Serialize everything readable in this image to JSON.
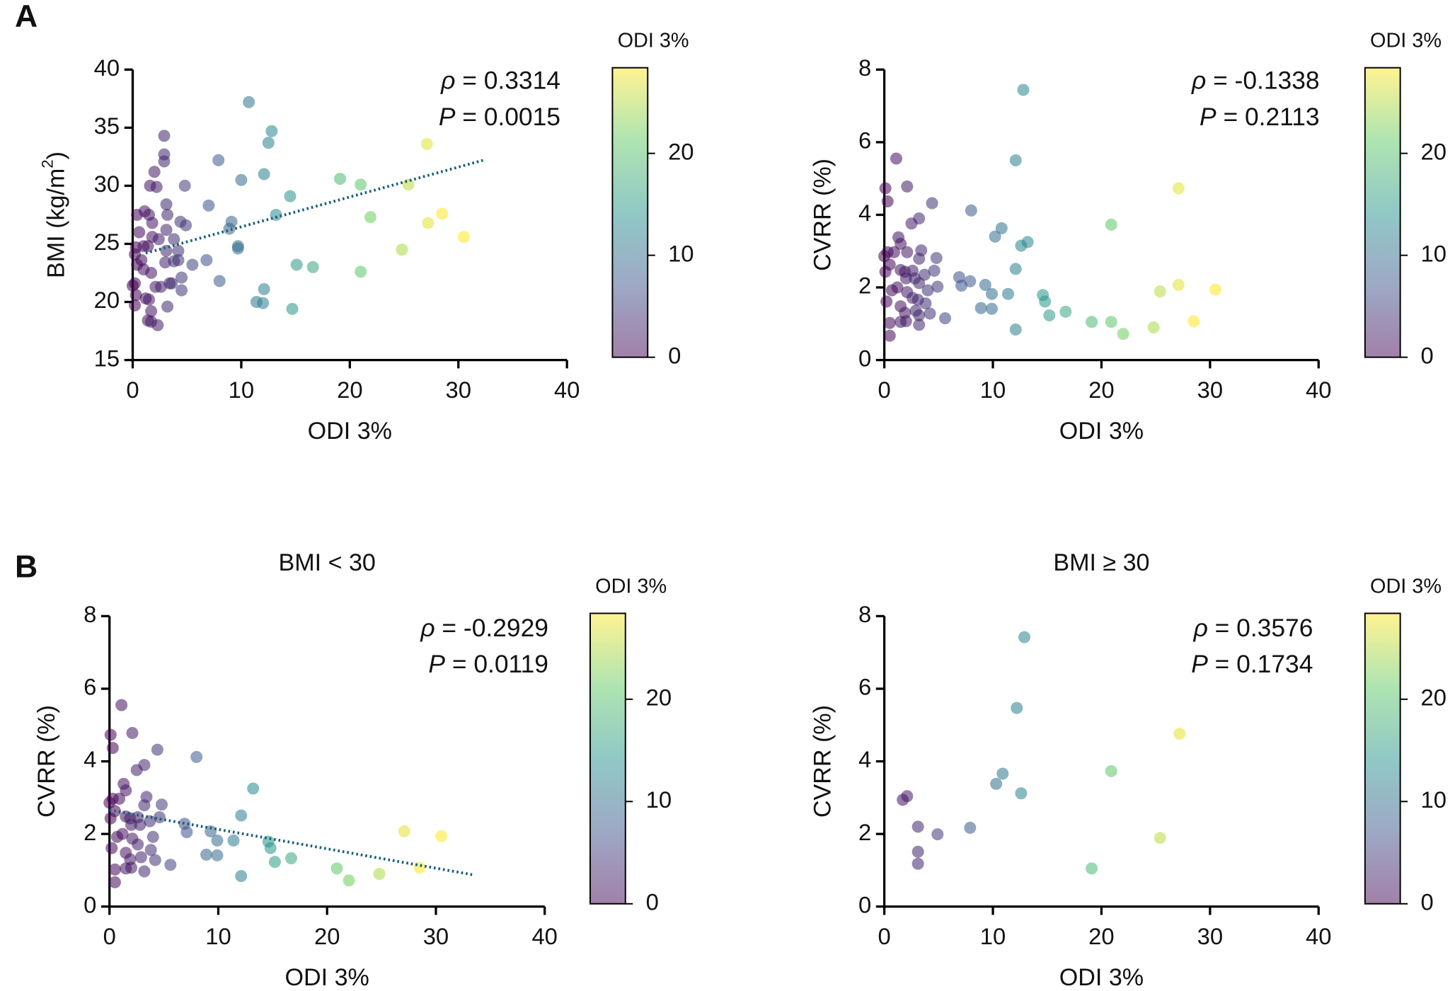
{
  "chart_data": [
    {
      "type": "scatter",
      "panel": "A",
      "x_label": "ODI 3%",
      "y_label": [
        "BMI (kg/m",
        "2",
        ")"
      ],
      "stats": [
        [
          "ρ",
          " = 0.3314"
        ],
        [
          "P",
          " = 0.0015"
        ]
      ],
      "xlim": [
        0,
        40
      ],
      "xticks": [
        0,
        10,
        20,
        30,
        40
      ],
      "ylim": [
        15,
        40
      ],
      "yticks": [
        15,
        20,
        25,
        30,
        35,
        40
      ],
      "colormap": "viridis",
      "colorbar": {
        "title": "ODI 3%",
        "lim": [
          0,
          28.4
        ],
        "ticks": [
          0,
          10,
          20
        ]
      },
      "trendline": {
        "color": "#1b5e7b",
        "x": [
          1.2,
          32.3
        ],
        "y": [
          24.2,
          32.2
        ]
      },
      "x": [
        10.7,
        12.8,
        12.5,
        2.9,
        2.9,
        2.9,
        7.9,
        12.1,
        19.1,
        10.0,
        21.0,
        25.4,
        27.1,
        2.0,
        1.6,
        4.8,
        2.2,
        14.5,
        3.1,
        7.0,
        0.4,
        1.1,
        1.5,
        3.2,
        13.2,
        21.9,
        28.5,
        27.2,
        1.8,
        4.4,
        4.9,
        9.1,
        8.9,
        3.1,
        0.6,
        1.8,
        3.8,
        2.4,
        9.7,
        9.7,
        30.5,
        0.3,
        1.0,
        1.4,
        3.1,
        4.2,
        24.8,
        6.8,
        5.5,
        0.2,
        0.8,
        0.4,
        1.0,
        1.7,
        3.0,
        3.8,
        4.2,
        15.1,
        16.6,
        21.0,
        4.5,
        8.0,
        0.2,
        0.0,
        2.1,
        2.6,
        3.6,
        12.1,
        0.3,
        1.2,
        1.5,
        3.2,
        11.4,
        12.0,
        14.7,
        0.2,
        1.4,
        1.7,
        2.3,
        3.4,
        1.7,
        4.5
      ],
      "values": [
        37.2,
        34.7,
        33.7,
        34.3,
        32.7,
        32.1,
        32.2,
        31.0,
        30.6,
        30.5,
        30.1,
        30.1,
        33.6,
        31.2,
        30.0,
        30.0,
        29.9,
        29.1,
        28.4,
        28.3,
        27.5,
        27.8,
        27.5,
        27.5,
        27.5,
        27.3,
        27.6,
        26.8,
        26.8,
        26.9,
        26.6,
        26.9,
        26.3,
        26.2,
        26.0,
        25.6,
        25.4,
        25.4,
        24.8,
        24.6,
        25.6,
        24.7,
        24.8,
        24.8,
        24.4,
        24.4,
        24.5,
        23.6,
        23.2,
        24.1,
        23.6,
        23.2,
        22.8,
        22.5,
        23.4,
        23.5,
        23.6,
        23.2,
        23.0,
        22.6,
        22.1,
        21.8,
        21.6,
        21.4,
        21.3,
        21.3,
        21.6,
        21.1,
        20.6,
        20.3,
        20.2,
        19.6,
        20.0,
        19.9,
        19.4,
        19.7,
        18.4,
        18.3,
        18.0,
        21.6,
        19.2,
        21.0
      ]
    },
    {
      "type": "scatter",
      "x_label": "ODI 3%",
      "y_label": [
        "CVRR (%)"
      ],
      "stats": [
        [
          "ρ",
          " = -0.1338"
        ],
        [
          "P",
          " = 0.2113"
        ]
      ],
      "xlim": [
        0,
        40
      ],
      "xticks": [
        0,
        10,
        20,
        30,
        40
      ],
      "ylim": [
        0,
        8
      ],
      "yticks": [
        0,
        2,
        4,
        6,
        8
      ],
      "colormap": "viridis",
      "colorbar": {
        "title": "ODI 3%",
        "lim": [
          0,
          28.4
        ],
        "ticks": [
          0,
          10,
          20
        ]
      },
      "x": [
        12.8,
        12.1,
        1.1,
        2.1,
        0.3,
        4.4,
        0.1,
        27.1,
        8.0,
        3.2,
        2.5,
        10.8,
        20.9,
        10.2,
        13.2,
        12.6,
        1.3,
        1.5,
        3.4,
        0.3,
        0.9,
        0.0,
        2.1,
        4.8,
        3.2,
        0.5,
        12.1,
        1.5,
        1.9,
        2.6,
        4.6,
        0.1,
        3.7,
        6.9,
        2.0,
        2.8,
        7.9,
        3.2,
        7.1,
        1.2,
        4.9,
        9.3,
        27.1,
        30.5,
        25.4,
        0.7,
        4.0,
        2.1,
        0.2,
        2.6,
        3.1,
        14.6,
        11.4,
        9.9,
        14.8,
        3.8,
        1.5,
        8.9,
        9.9,
        2.9,
        4.2,
        1.9,
        16.7,
        15.2,
        5.6,
        3.2,
        0.5,
        1.5,
        2.0,
        19.1,
        20.9,
        28.5,
        3.2,
        24.8,
        12.1,
        22.0,
        0.5
      ],
      "values": [
        7.44,
        5.5,
        5.55,
        4.78,
        4.37,
        4.32,
        4.73,
        4.73,
        4.12,
        3.9,
        3.76,
        3.63,
        3.73,
        3.4,
        3.25,
        3.15,
        3.38,
        3.2,
        3.02,
        2.97,
        2.97,
        2.86,
        2.97,
        2.81,
        2.79,
        2.63,
        2.51,
        2.48,
        2.43,
        2.46,
        2.46,
        2.43,
        2.35,
        2.28,
        2.25,
        2.25,
        2.17,
        2.12,
        2.05,
        2.0,
        2.02,
        2.07,
        2.07,
        1.94,
        1.89,
        1.92,
        1.92,
        1.87,
        1.61,
        1.71,
        1.66,
        1.79,
        1.82,
        1.82,
        1.61,
        1.56,
        1.48,
        1.43,
        1.41,
        1.36,
        1.28,
        1.3,
        1.33,
        1.23,
        1.15,
        1.23,
        1.02,
        1.05,
        1.07,
        1.05,
        1.05,
        1.07,
        0.97,
        0.9,
        0.84,
        0.72,
        0.67
      ]
    },
    {
      "type": "scatter",
      "panel": "B",
      "title": "BMI < 30",
      "x_label": "ODI 3%",
      "y_label": [
        "CVRR (%)"
      ],
      "stats": [
        [
          "ρ",
          " = -0.2929"
        ],
        [
          "P",
          " = 0.0119"
        ]
      ],
      "xlim": [
        0,
        40
      ],
      "xticks": [
        0,
        10,
        20,
        30,
        40
      ],
      "ylim": [
        0,
        8
      ],
      "yticks": [
        0,
        2,
        4,
        6,
        8
      ],
      "colormap": "viridis",
      "colorbar": {
        "title": "ODI 3%",
        "lim": [
          0,
          28.4
        ],
        "ticks": [
          0,
          10,
          20
        ]
      },
      "trendline": {
        "color": "#1b5e7b",
        "x": [
          0,
          33.5
        ],
        "y": [
          2.66,
          0.87
        ]
      },
      "x": [
        1.1,
        2.1,
        0.3,
        4.4,
        0.1,
        8.0,
        3.2,
        2.5,
        13.2,
        1.3,
        1.5,
        3.4,
        0.3,
        0.9,
        0.0,
        4.8,
        3.2,
        0.5,
        12.1,
        1.5,
        1.9,
        2.6,
        4.6,
        0.1,
        3.7,
        6.9,
        2.0,
        2.8,
        7.1,
        1.2,
        9.3,
        27.1,
        30.5,
        0.7,
        4.0,
        2.1,
        0.2,
        2.6,
        14.6,
        11.4,
        9.9,
        14.8,
        3.8,
        1.5,
        8.9,
        9.9,
        2.9,
        4.2,
        1.9,
        16.7,
        15.2,
        5.6,
        0.5,
        1.5,
        2.0,
        20.9,
        28.5,
        3.2,
        24.8,
        12.1,
        22.0,
        0.5
      ],
      "values": [
        5.55,
        4.78,
        4.37,
        4.32,
        4.73,
        4.12,
        3.9,
        3.76,
        3.25,
        3.38,
        3.2,
        3.02,
        2.97,
        2.97,
        2.86,
        2.81,
        2.79,
        2.63,
        2.51,
        2.48,
        2.43,
        2.46,
        2.46,
        2.43,
        2.35,
        2.28,
        2.25,
        2.25,
        2.05,
        2.0,
        2.07,
        2.07,
        1.94,
        1.92,
        1.92,
        1.87,
        1.61,
        1.71,
        1.79,
        1.82,
        1.82,
        1.61,
        1.56,
        1.48,
        1.43,
        1.41,
        1.36,
        1.28,
        1.3,
        1.33,
        1.23,
        1.15,
        1.02,
        1.05,
        1.07,
        1.05,
        1.07,
        0.97,
        0.9,
        0.84,
        0.72,
        0.67
      ]
    },
    {
      "type": "scatter",
      "title": "BMI ≥ 30",
      "x_label": "ODI 3%",
      "y_label": [
        "CVRR (%)"
      ],
      "stats": [
        [
          "ρ",
          " = 0.3576"
        ],
        [
          "P",
          " = 0.1734"
        ]
      ],
      "xlim": [
        0,
        40
      ],
      "xticks": [
        0,
        10,
        20,
        30,
        40
      ],
      "ylim": [
        0,
        8
      ],
      "yticks": [
        0,
        2,
        4,
        6,
        8
      ],
      "colormap": "viridis",
      "colorbar": {
        "title": "ODI 3%",
        "lim": [
          0,
          28.4
        ],
        "ticks": [
          0,
          10,
          20
        ]
      },
      "x": [
        12.9,
        12.2,
        27.2,
        10.9,
        20.9,
        10.3,
        12.6,
        2.1,
        1.7,
        3.1,
        7.9,
        4.9,
        25.4,
        3.1,
        3.1,
        19.1
      ],
      "values": [
        7.42,
        5.47,
        4.76,
        3.66,
        3.73,
        3.38,
        3.12,
        3.04,
        2.94,
        2.2,
        2.17,
        1.99,
        1.89,
        1.51,
        1.18,
        1.05
      ]
    }
  ]
}
